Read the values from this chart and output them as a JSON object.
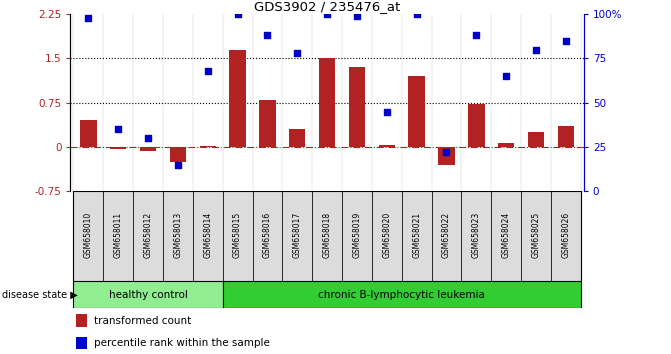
{
  "title": "GDS3902 / 235476_at",
  "samples": [
    "GSM658010",
    "GSM658011",
    "GSM658012",
    "GSM658013",
    "GSM658014",
    "GSM658015",
    "GSM658016",
    "GSM658017",
    "GSM658018",
    "GSM658019",
    "GSM658020",
    "GSM658021",
    "GSM658022",
    "GSM658023",
    "GSM658024",
    "GSM658025",
    "GSM658026"
  ],
  "bar_values": [
    0.45,
    -0.03,
    -0.07,
    -0.25,
    0.02,
    1.65,
    0.8,
    0.3,
    1.5,
    1.35,
    0.04,
    1.2,
    -0.3,
    0.72,
    0.07,
    0.25,
    0.35
  ],
  "dot_values": [
    98,
    35,
    30,
    15,
    68,
    100,
    88,
    78,
    100,
    99,
    45,
    100,
    22,
    88,
    65,
    80,
    85
  ],
  "bar_color": "#B22222",
  "dot_color": "#0000CD",
  "healthy_count": 5,
  "ylim_left": [
    -0.75,
    2.25
  ],
  "ylim_right": [
    0,
    100
  ],
  "yticks_left": [
    -0.75,
    0.0,
    0.75,
    1.5,
    2.25
  ],
  "yticks_right": [
    0,
    25,
    50,
    75,
    100
  ],
  "hlines": [
    0.75,
    1.5
  ],
  "hline_zero": 0.0,
  "healthy_label": "healthy control",
  "leukemia_label": "chronic B-lymphocytic leukemia",
  "disease_state_label": "disease state",
  "legend_bar_label": "transformed count",
  "legend_dot_label": "percentile rank within the sample",
  "healthy_color": "#90EE90",
  "leukemia_color": "#32CD32",
  "bg_color": "#ffffff",
  "right_ytick_labels": [
    "0",
    "25",
    "50",
    "75",
    "100%"
  ]
}
